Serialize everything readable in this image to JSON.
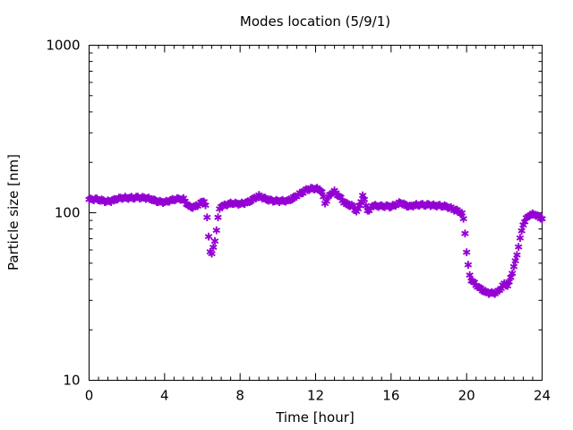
{
  "chart_data": {
    "type": "scatter",
    "title": "Modes location (5/9/1)",
    "xlabel": "Time [hour]",
    "ylabel": "Particle size [nm]",
    "xlim": [
      0,
      24
    ],
    "ylim": [
      10,
      1000
    ],
    "yscale": "log",
    "x_ticks": [
      0,
      4,
      8,
      12,
      16,
      20,
      24
    ],
    "x_tick_labels": [
      "0",
      "4",
      "8",
      "12",
      "16",
      "20",
      "24"
    ],
    "y_ticks": [
      10,
      100,
      1000
    ],
    "y_tick_labels": [
      "10",
      "100",
      "1000"
    ],
    "grid": false,
    "legend": "none",
    "marker_color": "#9400d3",
    "marker": "star",
    "anchors": {
      "x": [
        0,
        0.5,
        1,
        1.5,
        2,
        2.5,
        3,
        3.5,
        4,
        4.5,
        5,
        5.3,
        5.6,
        5.9,
        6.1,
        6.2,
        6.3,
        6.4,
        6.5,
        6.6,
        6.7,
        6.8,
        6.9,
        7.0,
        7.2,
        7.5,
        8,
        8.5,
        9,
        9.5,
        10,
        10.5,
        11,
        11.5,
        12,
        12.3,
        12.5,
        12.8,
        13,
        13.5,
        14,
        14.2,
        14.5,
        14.8,
        15,
        15.5,
        16,
        16.5,
        17,
        17.5,
        18,
        18.5,
        19,
        19.3,
        19.6,
        19.8,
        19.9,
        20,
        20.1,
        20.2,
        20.5,
        21,
        21.3,
        21.6,
        21.8,
        22,
        22.2,
        22.4,
        22.6,
        22.8,
        23,
        23.3,
        23.6,
        24
      ],
      "y": [
        120,
        119,
        118,
        121,
        122,
        125,
        122,
        118,
        117,
        119,
        121,
        110,
        109,
        113,
        118,
        106,
        80,
        60,
        57,
        63,
        73,
        88,
        105,
        111,
        110,
        113,
        114,
        117,
        125,
        121,
        117,
        117,
        128,
        136,
        140,
        138,
        116,
        130,
        133,
        116,
        110,
        100,
        125,
        100,
        112,
        110,
        108,
        116,
        109,
        111,
        113,
        110,
        108,
        106,
        103,
        98,
        80,
        58,
        46,
        40,
        37,
        34,
        33,
        33,
        35,
        38,
        37,
        44,
        52,
        67,
        85,
        97,
        99,
        93
      ]
    }
  }
}
